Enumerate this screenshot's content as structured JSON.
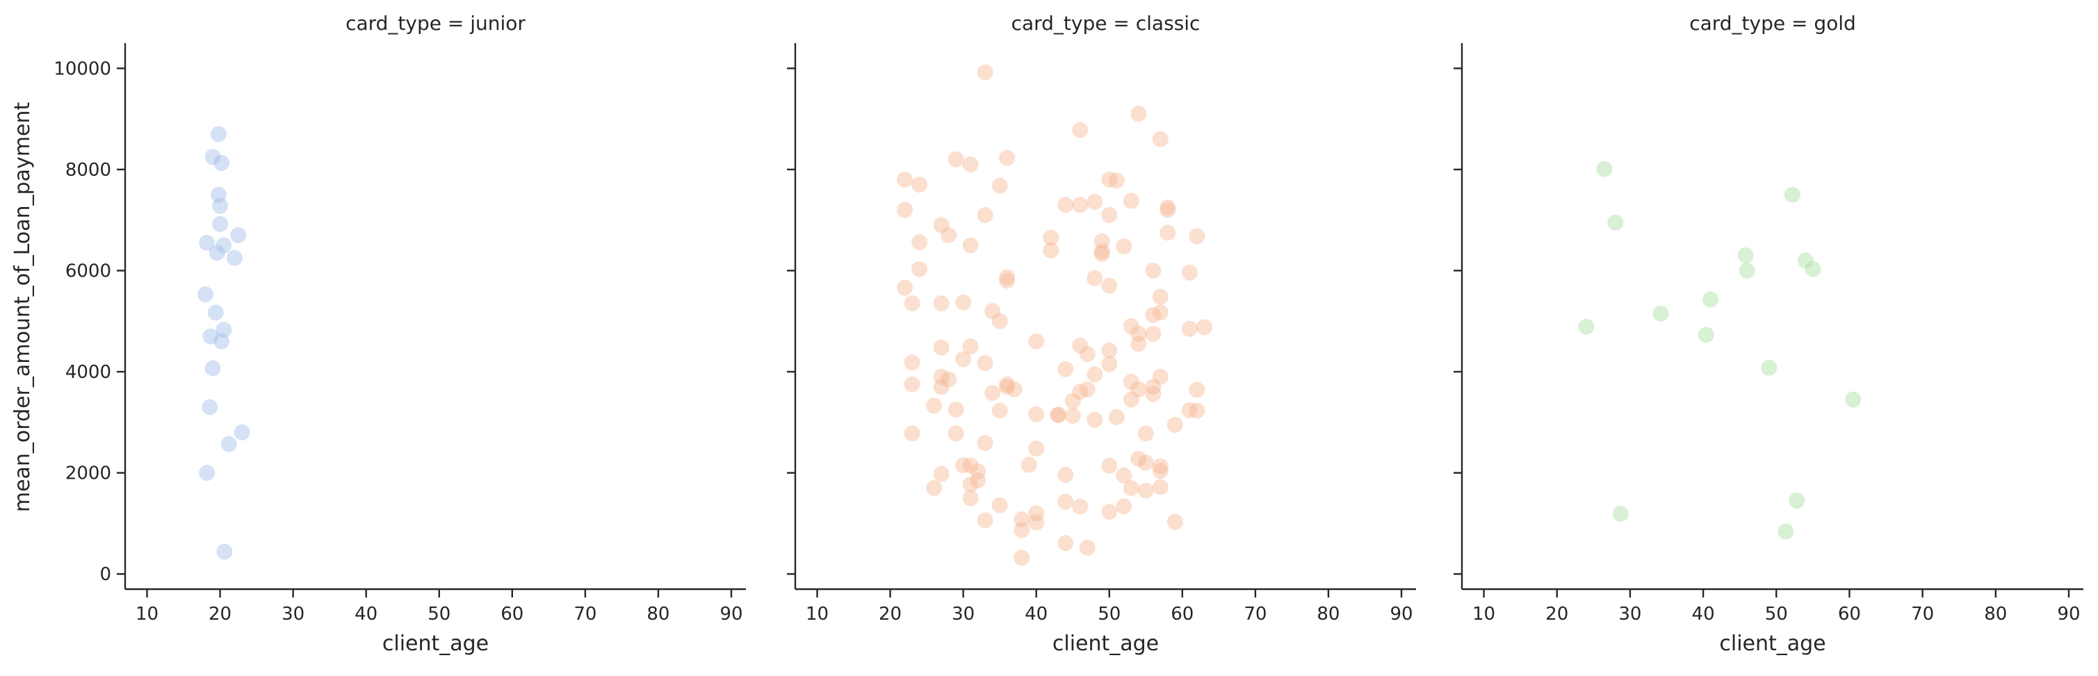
{
  "chart_data": {
    "type": "scatter",
    "layout": "facet-columns",
    "xlabel": "client_age",
    "ylabel": "mean_order_amount_of_Loan_payment",
    "xlim": [
      7,
      92
    ],
    "ylim": [
      -300,
      10500
    ],
    "xticks": [
      10,
      20,
      30,
      40,
      50,
      60,
      70,
      80,
      90
    ],
    "yticks": [
      0,
      2000,
      4000,
      6000,
      8000,
      10000
    ],
    "grid": false,
    "legend": "none",
    "panels": [
      {
        "title": "card_type = junior",
        "color": "#a1bce9",
        "points": [
          [
            19.8,
            8700
          ],
          [
            19.0,
            8250
          ],
          [
            20.2,
            8130
          ],
          [
            19.8,
            7500
          ],
          [
            20.0,
            7280
          ],
          [
            20.0,
            6920
          ],
          [
            22.5,
            6700
          ],
          [
            18.2,
            6550
          ],
          [
            20.5,
            6500
          ],
          [
            19.6,
            6350
          ],
          [
            22.0,
            6250
          ],
          [
            18.0,
            5530
          ],
          [
            19.4,
            5170
          ],
          [
            20.5,
            4830
          ],
          [
            18.7,
            4700
          ],
          [
            20.2,
            4600
          ],
          [
            19.0,
            4070
          ],
          [
            18.6,
            3300
          ],
          [
            23.0,
            2800
          ],
          [
            21.2,
            2570
          ],
          [
            18.2,
            2000
          ],
          [
            20.6,
            440
          ]
        ]
      },
      {
        "title": "card_type = classic",
        "color": "#f7b994",
        "points": [
          [
            33,
            9920
          ],
          [
            54,
            9100
          ],
          [
            46,
            8780
          ],
          [
            57,
            8600
          ],
          [
            36,
            8230
          ],
          [
            29,
            8200
          ],
          [
            31,
            8100
          ],
          [
            22,
            7800
          ],
          [
            50,
            7800
          ],
          [
            51,
            7780
          ],
          [
            24,
            7700
          ],
          [
            35,
            7680
          ],
          [
            53,
            7380
          ],
          [
            48,
            7360
          ],
          [
            44,
            7300
          ],
          [
            46,
            7300
          ],
          [
            58,
            7250
          ],
          [
            58,
            7200
          ],
          [
            22,
            7200
          ],
          [
            33,
            7100
          ],
          [
            50,
            7100
          ],
          [
            27,
            6900
          ],
          [
            28,
            6700
          ],
          [
            62,
            6680
          ],
          [
            42,
            6650
          ],
          [
            49,
            6580
          ],
          [
            58,
            6750
          ],
          [
            24,
            6560
          ],
          [
            31,
            6500
          ],
          [
            52,
            6480
          ],
          [
            42,
            6400
          ],
          [
            49,
            6380
          ],
          [
            49,
            6330
          ],
          [
            24,
            6030
          ],
          [
            56,
            6000
          ],
          [
            61,
            5960
          ],
          [
            36,
            5870
          ],
          [
            48,
            5850
          ],
          [
            36,
            5800
          ],
          [
            50,
            5700
          ],
          [
            22,
            5660
          ],
          [
            57,
            5480
          ],
          [
            30,
            5370
          ],
          [
            23,
            5350
          ],
          [
            27,
            5350
          ],
          [
            34,
            5200
          ],
          [
            57,
            5170
          ],
          [
            56,
            5120
          ],
          [
            35,
            5000
          ],
          [
            53,
            4900
          ],
          [
            63,
            4880
          ],
          [
            61,
            4850
          ],
          [
            54,
            4750
          ],
          [
            56,
            4750
          ],
          [
            40,
            4600
          ],
          [
            54,
            4550
          ],
          [
            46,
            4520
          ],
          [
            31,
            4500
          ],
          [
            27,
            4480
          ],
          [
            50,
            4420
          ],
          [
            47,
            4350
          ],
          [
            23,
            4180
          ],
          [
            33,
            4170
          ],
          [
            30,
            4250
          ],
          [
            44,
            4050
          ],
          [
            50,
            4150
          ],
          [
            27,
            3900
          ],
          [
            28,
            3850
          ],
          [
            48,
            3950
          ],
          [
            57,
            3900
          ],
          [
            53,
            3800
          ],
          [
            23,
            3750
          ],
          [
            27,
            3700
          ],
          [
            36,
            3750
          ],
          [
            37,
            3650
          ],
          [
            36,
            3700
          ],
          [
            47,
            3650
          ],
          [
            46,
            3600
          ],
          [
            34,
            3580
          ],
          [
            54,
            3650
          ],
          [
            56,
            3700
          ],
          [
            56,
            3560
          ],
          [
            62,
            3640
          ],
          [
            45,
            3420
          ],
          [
            26,
            3330
          ],
          [
            53,
            3450
          ],
          [
            29,
            3250
          ],
          [
            35,
            3230
          ],
          [
            40,
            3160
          ],
          [
            43,
            3150
          ],
          [
            43,
            3140
          ],
          [
            45,
            3130
          ],
          [
            48,
            3050
          ],
          [
            51,
            3100
          ],
          [
            59,
            2950
          ],
          [
            62,
            3230
          ],
          [
            61,
            3240
          ],
          [
            23,
            2780
          ],
          [
            29,
            2780
          ],
          [
            33,
            2590
          ],
          [
            55,
            2780
          ],
          [
            40,
            2480
          ],
          [
            54,
            2280
          ],
          [
            50,
            2140
          ],
          [
            31,
            2150
          ],
          [
            30,
            2150
          ],
          [
            39,
            2160
          ],
          [
            57,
            2130
          ],
          [
            55,
            2200
          ],
          [
            57,
            2040
          ],
          [
            27,
            1980
          ],
          [
            32,
            2030
          ],
          [
            44,
            1960
          ],
          [
            52,
            1950
          ],
          [
            32,
            1850
          ],
          [
            31,
            1770
          ],
          [
            26,
            1700
          ],
          [
            53,
            1700
          ],
          [
            55,
            1650
          ],
          [
            57,
            1720
          ],
          [
            31,
            1500
          ],
          [
            35,
            1360
          ],
          [
            44,
            1430
          ],
          [
            46,
            1330
          ],
          [
            52,
            1340
          ],
          [
            50,
            1230
          ],
          [
            40,
            1200
          ],
          [
            38,
            1080
          ],
          [
            40,
            1020
          ],
          [
            33,
            1060
          ],
          [
            59,
            1030
          ],
          [
            38,
            870
          ],
          [
            44,
            610
          ],
          [
            47,
            520
          ],
          [
            38,
            320
          ]
        ]
      },
      {
        "title": "card_type = gold",
        "color": "#a9dea0",
        "points": [
          [
            26.5,
            8010
          ],
          [
            52.2,
            7500
          ],
          [
            28.0,
            6950
          ],
          [
            45.8,
            6300
          ],
          [
            54.0,
            6200
          ],
          [
            55.0,
            6030
          ],
          [
            46.0,
            6000
          ],
          [
            41.0,
            5430
          ],
          [
            34.2,
            5150
          ],
          [
            24.0,
            4890
          ],
          [
            40.4,
            4730
          ],
          [
            49.0,
            4080
          ],
          [
            60.5,
            3450
          ],
          [
            52.8,
            1450
          ],
          [
            28.7,
            1190
          ],
          [
            51.3,
            840
          ]
        ]
      }
    ]
  }
}
